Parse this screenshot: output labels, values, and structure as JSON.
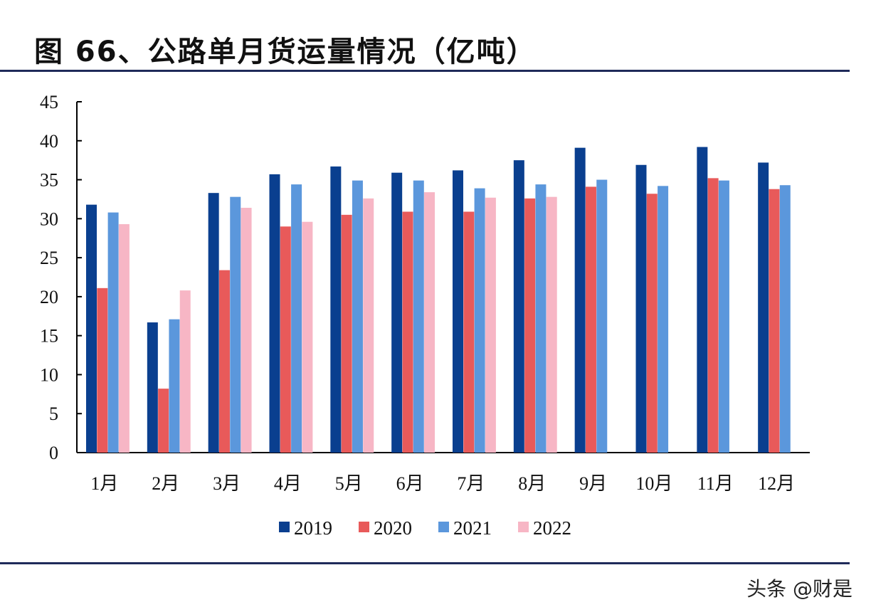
{
  "chart_data": {
    "type": "bar",
    "title": "图 66、公路单月货运量情况（亿吨）",
    "categories": [
      "1月",
      "2月",
      "3月",
      "4月",
      "5月",
      "6月",
      "7月",
      "8月",
      "9月",
      "10月",
      "11月",
      "12月"
    ],
    "series": [
      {
        "name": "2019",
        "color": "#0a3f8f",
        "values": [
          31.8,
          16.7,
          33.3,
          35.7,
          36.7,
          35.9,
          36.2,
          37.5,
          39.1,
          36.9,
          39.2,
          37.2
        ]
      },
      {
        "name": "2020",
        "color": "#e85a5a",
        "values": [
          21.1,
          8.2,
          23.4,
          29.0,
          30.5,
          30.9,
          30.9,
          32.6,
          34.1,
          33.2,
          35.2,
          33.8
        ]
      },
      {
        "name": "2021",
        "color": "#5b97dc",
        "values": [
          30.8,
          17.1,
          32.8,
          34.4,
          34.9,
          34.9,
          33.9,
          34.4,
          35.0,
          34.2,
          34.9,
          34.3
        ]
      },
      {
        "name": "2022",
        "color": "#f7b6c5",
        "values": [
          29.3,
          20.8,
          31.4,
          29.6,
          32.6,
          33.4,
          32.7,
          32.8,
          null,
          null,
          null,
          null
        ]
      }
    ],
    "ylim": [
      0,
      45
    ],
    "yticks": [
      0,
      5,
      10,
      15,
      20,
      25,
      30,
      35,
      40,
      45
    ],
    "grid": false,
    "legend": "bottom"
  },
  "watermark": "头条 @财是"
}
